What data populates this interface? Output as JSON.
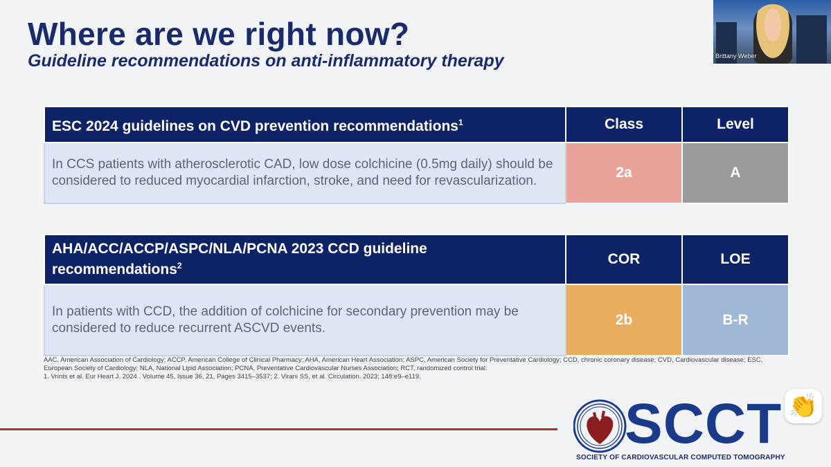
{
  "slide": {
    "title": "Where are we right now?",
    "subtitle": "Guideline recommendations on anti-inflammatory therapy"
  },
  "participant": {
    "name": "Brittany Weber"
  },
  "table1": {
    "header": "ESC 2024 guidelines on CVD prevention recommendations",
    "header_sup": "1",
    "col2": "Class",
    "col3": "Level",
    "text": "In CCS patients with atherosclerotic CAD, low dose colchicine (0.5mg daily) should be considered to reduced myocardial infarction, stroke, and need for revascularization.",
    "class_value": "2a",
    "level_value": "A",
    "class_color": "#e8a49b",
    "level_color": "#9b9b9e"
  },
  "table2": {
    "header": "AHA/ACC/ACCP/ASPC/NLA/PCNA 2023 CCD guideline recommendations",
    "header_sup": "2",
    "col2": "COR",
    "col3": "LOE",
    "text": "In patients with CCD, the addition of colchicine for secondary prevention may be considered to reduce recurrent ASCVD events.",
    "cor_value": "2b",
    "loe_value": "B-R",
    "cor_color": "#e9ad5f",
    "loe_color": "#9fb8d8"
  },
  "footnotes": {
    "abbreviations": "AAC, American Association of Cardiology; ACCP, American College of Clinical Pharmacy; AHA, American Heart Association; ASPC, American Society for Preventative Cardiology; CCD, chronic coronary disease; CVD, Cardiovascular disease; ESC, European Society of Cardiology; NLA, National Lipid Association; PCNA, Preventative Cardiovascular Nurses Association; RCT, randomized control trial.",
    "references": "1. Vrints et al. Eur Heart J. 2024 . Volume 45, Issue 36, 21, Pages 3415–3537; 2. Virani SS, et al. Circulation. 2023; 148:e9–e119."
  },
  "logo": {
    "wordmark": "SCCT",
    "tagline": "SOCIETY OF CARDIOVASCULAR COMPUTED TOMOGRAPHY"
  },
  "reaction": {
    "icon": "clapping-hands-icon",
    "glyph": "👏"
  },
  "colors": {
    "navy": "#0e2366",
    "accent_red": "#a8322e"
  }
}
